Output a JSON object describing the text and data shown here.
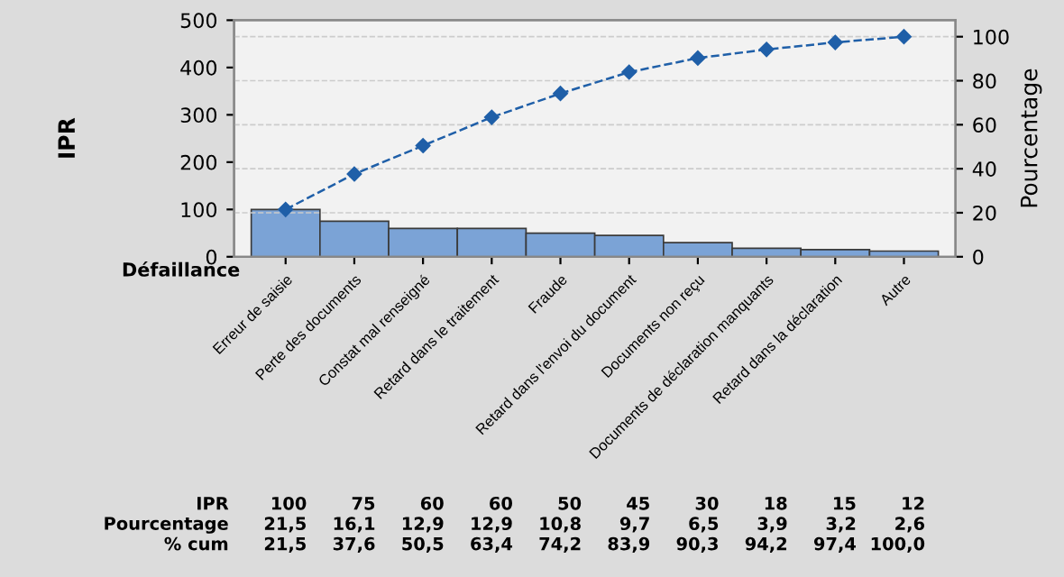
{
  "chart_data": {
    "type": "bar",
    "xlabel": "Défaillance",
    "ylabel": "IPR",
    "y2label": "Pourcentage",
    "categories": [
      "Erreur de saisie",
      "Perte des documents",
      "Constat mal renseigné",
      "Retard dans le traitement",
      "Fraude",
      "Retard dans l'envoi du document",
      "Documents non reçu",
      "Documents de déclaration manquants",
      "Retard dans la déclaration",
      "Autre"
    ],
    "series": [
      {
        "color": "#7ba3d6",
        "values": [
          100,
          75,
          60,
          60,
          50,
          45,
          30,
          18,
          15,
          12
        ],
        "value_labels": [
          "100",
          "75",
          "60",
          "60",
          "50",
          "45",
          "30",
          "18",
          "15",
          "12"
        ]
      },
      {
        "type": "line",
        "axis": "y2",
        "color": "#1f5fa8",
        "marker": "diamond",
        "line_style": "dashed",
        "values": [
          21.5,
          37.6,
          50.5,
          63.4,
          74.2,
          83.9,
          90.3,
          94.2,
          97.4,
          100.0
        ],
        "value_labels": [
          "21,5",
          "37,6",
          "50,5",
          "63,4",
          "74,2",
          "83,9",
          "90,3",
          "94,2",
          "97,4",
          "100,0"
        ]
      }
    ],
    "annotations": [
      "IPR",
      "Pourcentage",
      "% cum",
      "21,5",
      "16,1",
      "12,9",
      "12,9",
      "10,8",
      "9,7",
      "6,5",
      "3,9",
      "3,2",
      "2,6"
    ],
    "ylim": [
      0,
      500
    ],
    "yticks": [
      0,
      100,
      200,
      300,
      400,
      500
    ],
    "y2lim": [
      0,
      107.5
    ],
    "y2ticks": [
      0,
      20,
      40,
      60,
      80,
      100
    ],
    "grid": true,
    "legend": false
  }
}
